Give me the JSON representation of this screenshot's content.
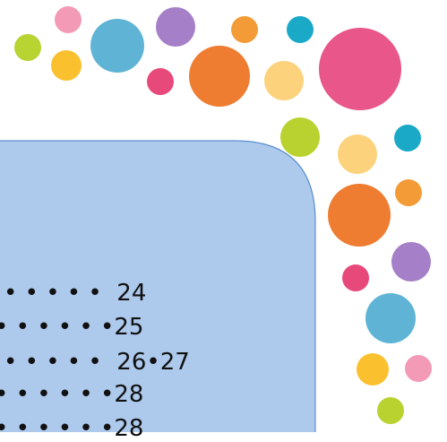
{
  "rows": [
    {
      "leader": "• • • • • ",
      "page": "24"
    },
    {
      "leader": "• • • • • •",
      "page": "25"
    },
    {
      "leader": "• • • • • ",
      "page": "26•27"
    },
    {
      "leader": "• • • • • •",
      "page": "28"
    },
    {
      "leader": "• • • • • •",
      "page": "28"
    }
  ]
}
